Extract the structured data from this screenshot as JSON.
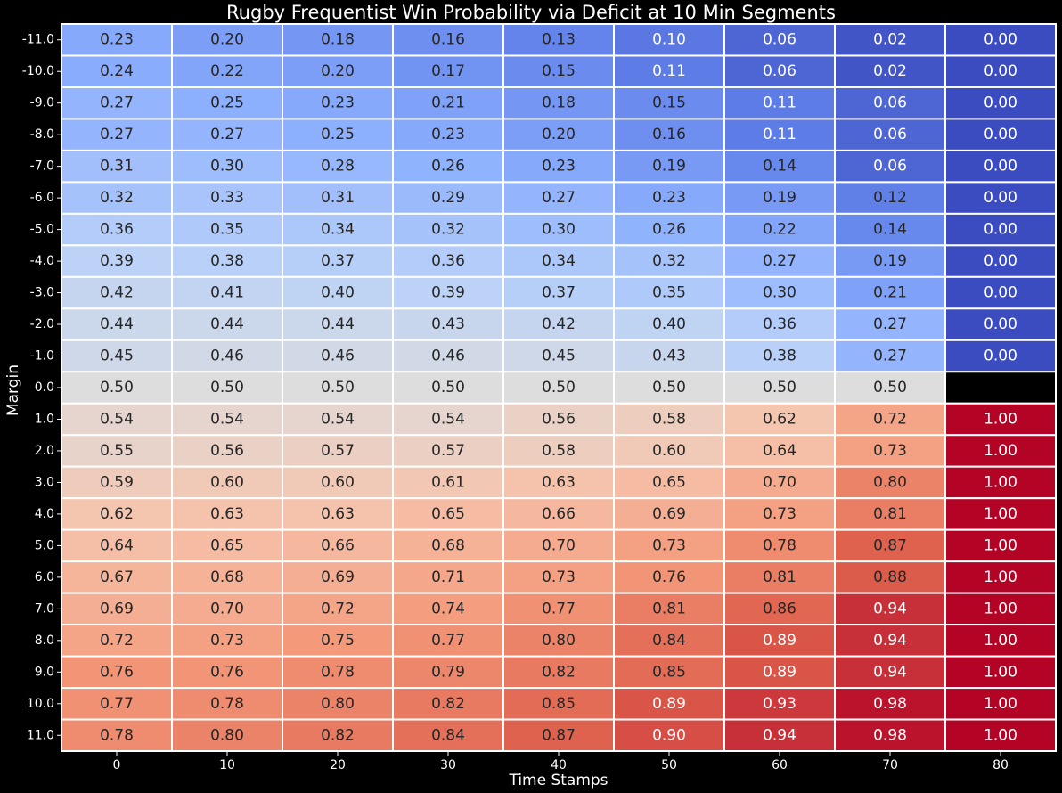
{
  "chart_data": {
    "type": "heatmap",
    "title": "Rugby Frequentist Win Probability via Deficit at 10 Min Segments",
    "xlabel": "Time Stamps",
    "ylabel": "Margin",
    "x_categories": [
      "0",
      "10",
      "20",
      "30",
      "40",
      "50",
      "60",
      "70",
      "80"
    ],
    "y_categories": [
      "-11.0",
      "-10.0",
      "-9.0",
      "-8.0",
      "-7.0",
      "-6.0",
      "-5.0",
      "-4.0",
      "-3.0",
      "-2.0",
      "-1.0",
      "0.0",
      "1.0",
      "2.0",
      "3.0",
      "4.0",
      "5.0",
      "6.0",
      "7.0",
      "8.0",
      "9.0",
      "10.0",
      "11.0"
    ],
    "values": [
      [
        0.23,
        0.2,
        0.18,
        0.16,
        0.13,
        0.1,
        0.06,
        0.02,
        0.0
      ],
      [
        0.24,
        0.22,
        0.2,
        0.17,
        0.15,
        0.11,
        0.06,
        0.02,
        0.0
      ],
      [
        0.27,
        0.25,
        0.23,
        0.21,
        0.18,
        0.15,
        0.11,
        0.06,
        0.0
      ],
      [
        0.27,
        0.27,
        0.25,
        0.23,
        0.2,
        0.16,
        0.11,
        0.06,
        0.0
      ],
      [
        0.31,
        0.3,
        0.28,
        0.26,
        0.23,
        0.19,
        0.14,
        0.06,
        0.0
      ],
      [
        0.32,
        0.33,
        0.31,
        0.29,
        0.27,
        0.23,
        0.19,
        0.12,
        0.0
      ],
      [
        0.36,
        0.35,
        0.34,
        0.32,
        0.3,
        0.26,
        0.22,
        0.14,
        0.0
      ],
      [
        0.39,
        0.38,
        0.37,
        0.36,
        0.34,
        0.32,
        0.27,
        0.19,
        0.0
      ],
      [
        0.42,
        0.41,
        0.4,
        0.39,
        0.37,
        0.35,
        0.3,
        0.21,
        0.0
      ],
      [
        0.44,
        0.44,
        0.44,
        0.43,
        0.42,
        0.4,
        0.36,
        0.27,
        0.0
      ],
      [
        0.45,
        0.46,
        0.46,
        0.46,
        0.45,
        0.43,
        0.38,
        0.27,
        0.0
      ],
      [
        0.5,
        0.5,
        0.5,
        0.5,
        0.5,
        0.5,
        0.5,
        0.5,
        null
      ],
      [
        0.54,
        0.54,
        0.54,
        0.54,
        0.56,
        0.58,
        0.62,
        0.72,
        1.0
      ],
      [
        0.55,
        0.56,
        0.57,
        0.57,
        0.58,
        0.6,
        0.64,
        0.73,
        1.0
      ],
      [
        0.59,
        0.6,
        0.6,
        0.61,
        0.63,
        0.65,
        0.7,
        0.8,
        1.0
      ],
      [
        0.62,
        0.63,
        0.63,
        0.65,
        0.66,
        0.69,
        0.73,
        0.81,
        1.0
      ],
      [
        0.64,
        0.65,
        0.66,
        0.68,
        0.7,
        0.73,
        0.78,
        0.87,
        1.0
      ],
      [
        0.67,
        0.68,
        0.69,
        0.71,
        0.73,
        0.76,
        0.81,
        0.88,
        1.0
      ],
      [
        0.69,
        0.7,
        0.72,
        0.74,
        0.77,
        0.81,
        0.86,
        0.94,
        1.0
      ],
      [
        0.72,
        0.73,
        0.75,
        0.77,
        0.8,
        0.84,
        0.89,
        0.94,
        1.0
      ],
      [
        0.76,
        0.76,
        0.78,
        0.79,
        0.82,
        0.85,
        0.89,
        0.94,
        1.0
      ],
      [
        0.77,
        0.78,
        0.8,
        0.82,
        0.85,
        0.89,
        0.93,
        0.98,
        1.0
      ],
      [
        0.78,
        0.8,
        0.82,
        0.84,
        0.87,
        0.9,
        0.94,
        0.98,
        1.0
      ]
    ],
    "colormap": "coolwarm",
    "vmin": 0.0,
    "vmax": 1.0,
    "value_format": "2 decimals",
    "missing_color": "#000000",
    "background": "#000000",
    "cell_border_color": "#ffffff",
    "text_color": "#ffffff",
    "grid": false,
    "legend": "none"
  }
}
